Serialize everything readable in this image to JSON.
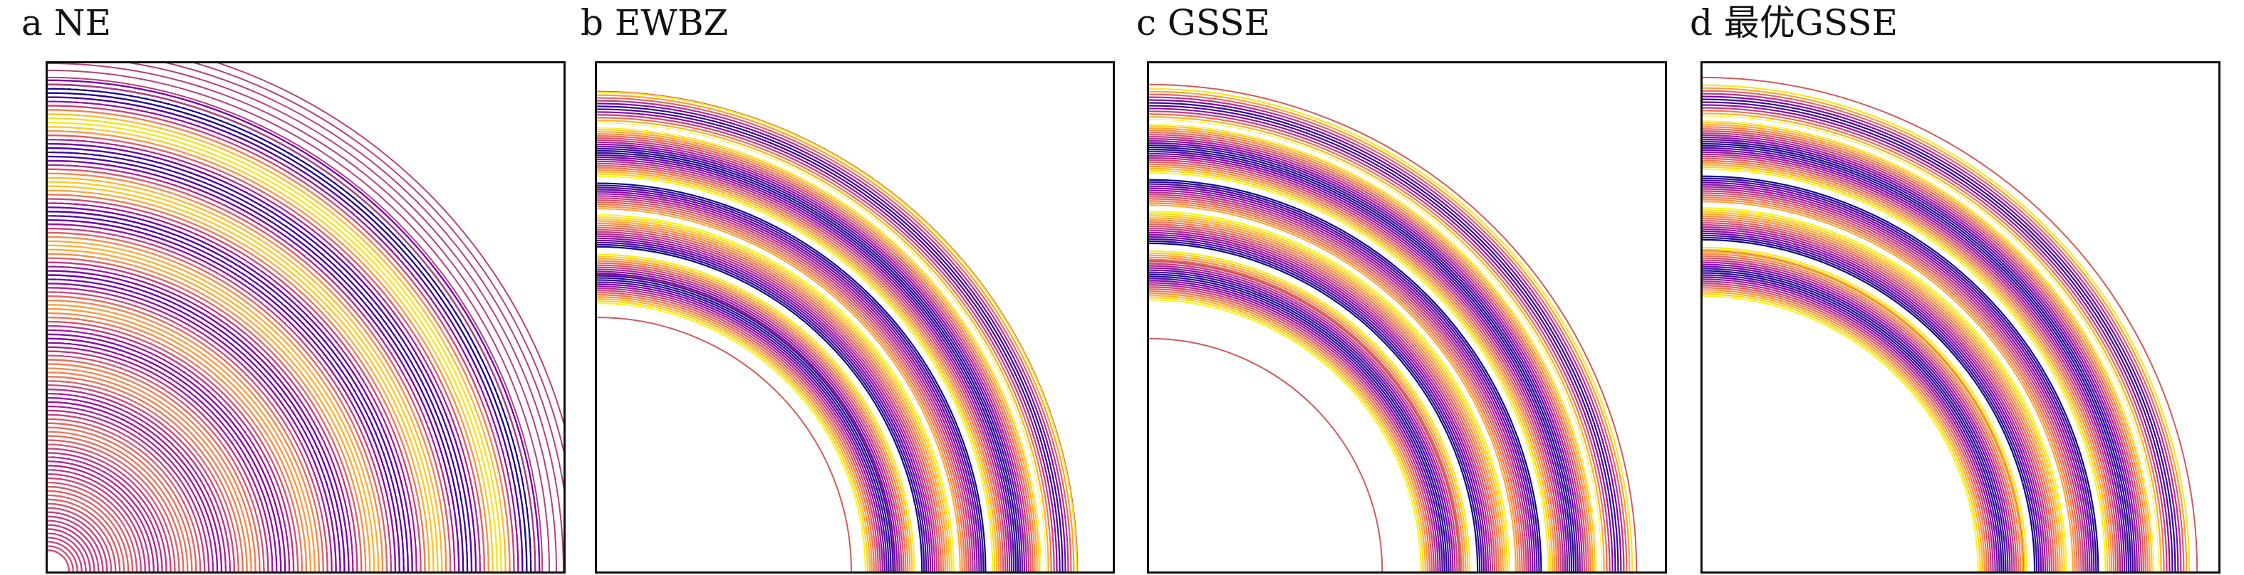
{
  "panels": [
    {
      "letter": "a",
      "label": "NE"
    },
    {
      "letter": "b",
      "label": "EWBZ"
    },
    {
      "letter": "c",
      "label": "GSSE"
    },
    {
      "letter": "d",
      "label": "最优GSSE"
    }
  ],
  "colormap": [
    "#0d0887",
    "#46039f",
    "#7201a8",
    "#9c179e",
    "#bd3786",
    "#d8576b",
    "#ed7953",
    "#fb9f3a",
    "#fdca26",
    "#f0f921"
  ]
}
